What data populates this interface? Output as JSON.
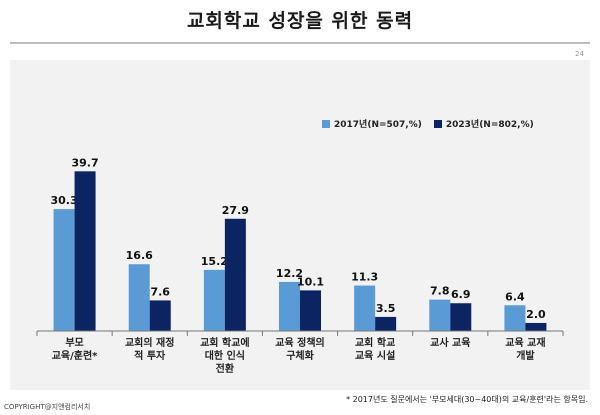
{
  "title": "교회학교 성장을 위한 동력",
  "page_number": "24",
  "footnote": "* 2017년도 질문에서는 '부모세대(30~40대)의 교육/훈련'라는 항목임.",
  "copyright": "COPYRIGHT@지앤컴리서치",
  "colors": {
    "series_2017": "#5b9bd5",
    "series_2023": "#0d2463"
  },
  "chart_data": {
    "type": "bar",
    "categories": [
      [
        "부모",
        "교육/훈련*"
      ],
      [
        "교회의 재정",
        "적 투자"
      ],
      [
        "교회 학교에",
        "대한 인식",
        "전환"
      ],
      [
        "교육 정책의",
        "구체화"
      ],
      [
        "교회 학교",
        "교육 시설"
      ],
      [
        "교사 교육"
      ],
      [
        "교육 교재",
        "개발"
      ]
    ],
    "series": [
      {
        "name": "2017년(N=507,%)",
        "values": [
          30.3,
          16.6,
          15.2,
          12.2,
          11.3,
          7.8,
          6.4
        ]
      },
      {
        "name": "2023년(N=802,%)",
        "values": [
          39.7,
          7.6,
          27.9,
          10.1,
          3.5,
          6.9,
          2.0
        ]
      }
    ],
    "ylim": [
      0,
      45
    ],
    "grid": false,
    "legend_position": "top-right",
    "data_labels": true
  }
}
